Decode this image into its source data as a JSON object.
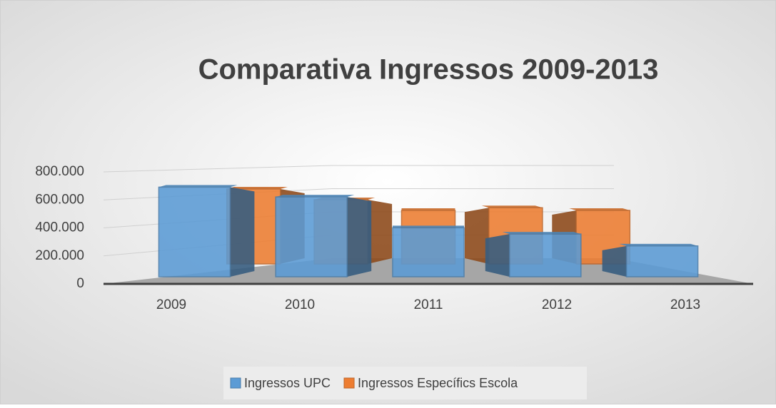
{
  "chart_data": {
    "type": "bar3d",
    "title": "Comparativa Ingressos 2009-2013",
    "categories": [
      "2009",
      "2010",
      "2011",
      "2012",
      "2013"
    ],
    "series": [
      {
        "name": "Ingressos UPC",
        "color": "#5b9bd5",
        "values": [
          640000,
          570000,
          350000,
          305000,
          220000
        ]
      },
      {
        "name": "Ingressos Específics Escola",
        "color": "#ed7d31",
        "values": [
          560000,
          480000,
          400000,
          420000,
          400000
        ]
      }
    ],
    "ylim": [
      0,
      800000
    ],
    "yticks": [
      0,
      {
        "value": 200000,
        "label": "200.000"
      },
      {
        "value": 400000,
        "label": "400.000"
      },
      {
        "value": 600000,
        "label": "600.000"
      },
      {
        "value": 800000,
        "label": "800.000"
      }
    ],
    "grid": true,
    "legend": "bottom"
  }
}
